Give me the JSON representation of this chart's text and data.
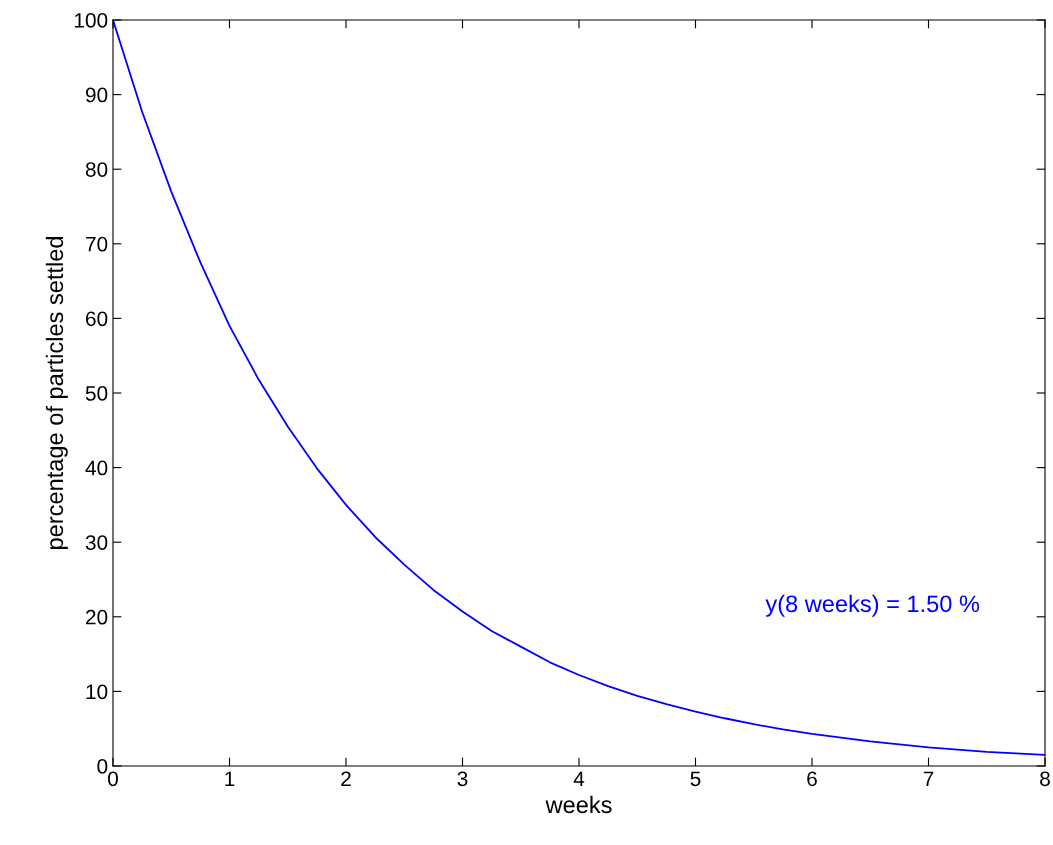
{
  "chart_data": {
    "type": "line",
    "xlabel": "weeks",
    "ylabel": "percentage of particles settled",
    "x": [
      0,
      0.25,
      0.5,
      0.75,
      1,
      1.25,
      1.5,
      1.75,
      2,
      2.25,
      2.5,
      2.75,
      3,
      3.25,
      3.5,
      3.75,
      4,
      4.25,
      4.5,
      4.75,
      5,
      5.25,
      5.5,
      5.75,
      6,
      6.25,
      6.5,
      6.75,
      7,
      7.25,
      7.5,
      7.75,
      8
    ],
    "series": [
      {
        "color": "#0000ff",
        "values": [
          100,
          87.7,
          77,
          67.5,
          59,
          51.8,
          45.5,
          39.9,
          35,
          30.7,
          27,
          23.6,
          20.7,
          18.1,
          16,
          13.9,
          12.2,
          10.7,
          9.4,
          8.3,
          7.3,
          6.4,
          5.6,
          4.9,
          4.3,
          3.8,
          3.3,
          2.9,
          2.5,
          2.2,
          1.9,
          1.7,
          1.5
        ]
      }
    ],
    "annotations": [
      "y(8 weeks) = 1.50 %"
    ],
    "xlim": [
      0,
      8
    ],
    "ylim": [
      0,
      100
    ],
    "xticks": [
      0,
      1,
      2,
      3,
      4,
      5,
      6,
      7,
      8
    ],
    "yticks": [
      0,
      10,
      20,
      30,
      40,
      50,
      60,
      70,
      80,
      90,
      100
    ],
    "grid": false,
    "legend": false,
    "marker": "none",
    "line_style": "solid"
  }
}
